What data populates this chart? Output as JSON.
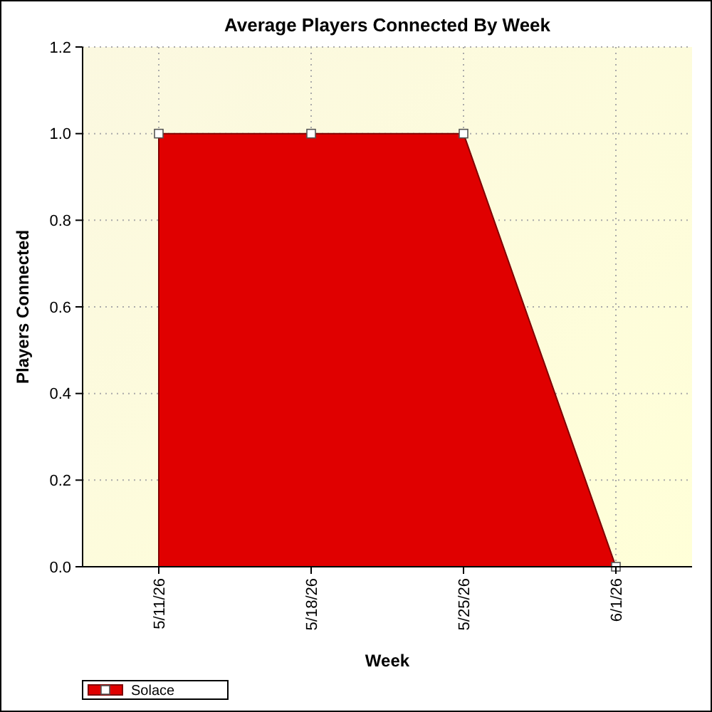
{
  "chart_data": {
    "type": "area",
    "title": "Average Players Connected By Week",
    "xlabel": "Week",
    "ylabel": "Players Connected",
    "categories": [
      "5/11/26",
      "5/18/26",
      "5/25/26",
      "6/1/26"
    ],
    "series": [
      {
        "name": "Solace",
        "color": "#e00000",
        "values": [
          1,
          1,
          1,
          0
        ]
      }
    ],
    "ylim": [
      0,
      1.2
    ],
    "yticks": [
      {
        "value": 0,
        "label": "0.0"
      },
      {
        "value": 0.2,
        "label": "0.2"
      },
      {
        "value": 0.4,
        "label": "0.4"
      },
      {
        "value": 0.6,
        "label": "0.6"
      },
      {
        "value": 0.8,
        "label": "0.8"
      },
      {
        "value": 1,
        "label": "1.0"
      },
      {
        "value": 1.2,
        "label": "1.2"
      }
    ],
    "grid": true,
    "legend": "bottom left",
    "marker": "square"
  }
}
